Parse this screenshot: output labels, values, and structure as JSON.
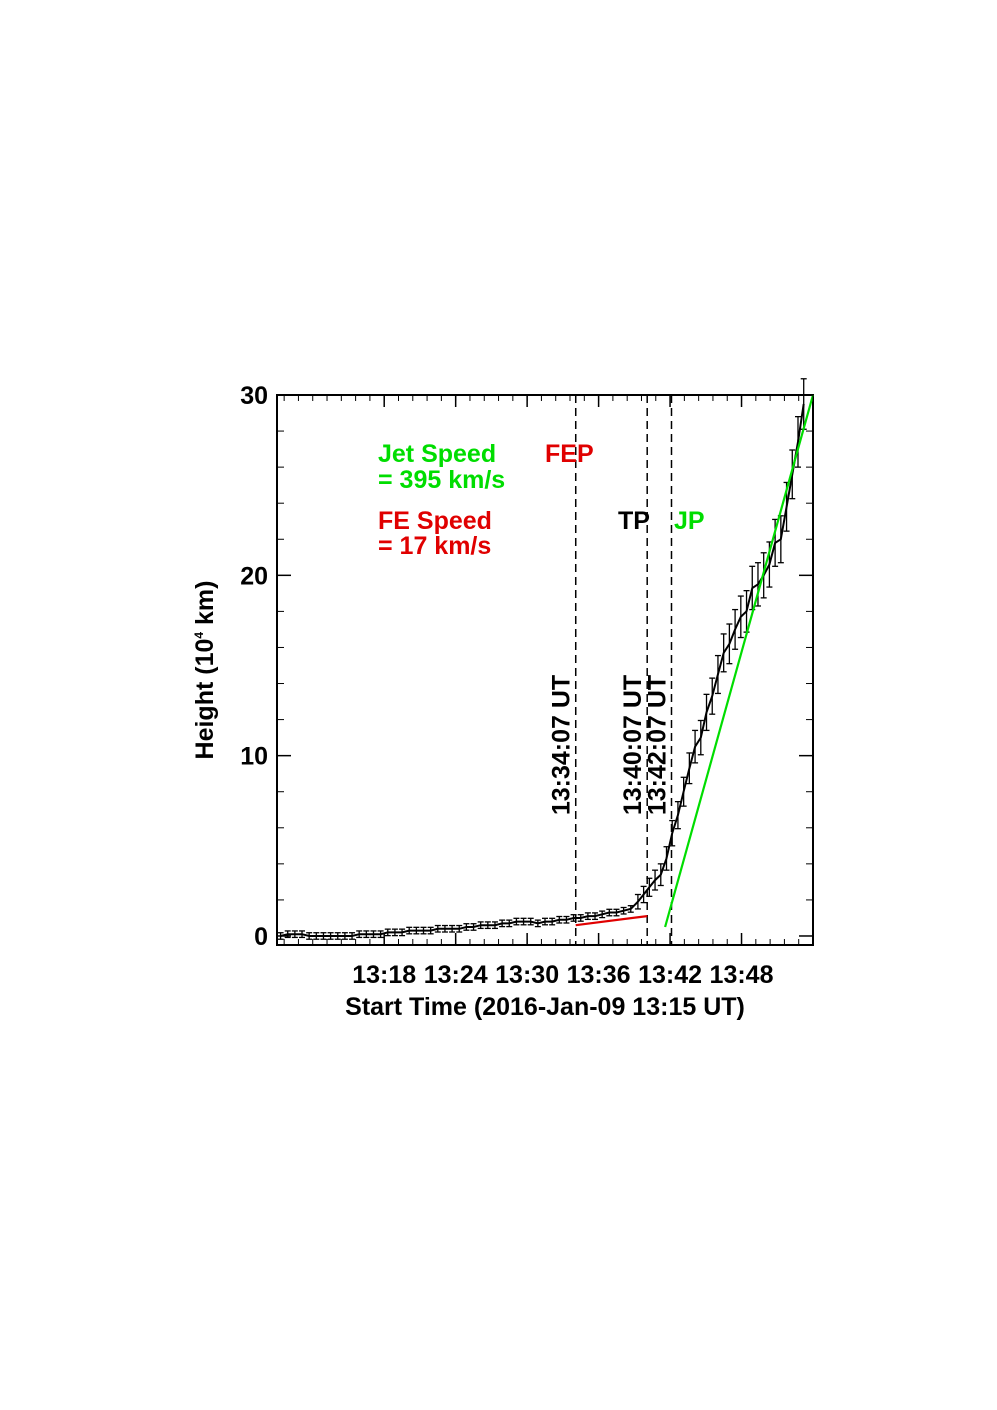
{
  "chart_data": {
    "type": "line",
    "x_unit": "minutes after 13:15 UT",
    "xlabel": "Start Time (2016-Jan-09 13:15 UT)",
    "ylabel_main": "Height (10",
    "ylabel_exp": "4",
    "ylabel_tail": " km)",
    "xlim": [
      13.15,
      13.9
    ],
    "x_ticks": [
      {
        "v": 13.3,
        "label": "13:18"
      },
      {
        "v": 13.4,
        "label": "13:24"
      },
      {
        "v": 13.5,
        "label": "13:30"
      },
      {
        "v": 13.6,
        "label": "13:36"
      },
      {
        "v": 13.7,
        "label": "13:42"
      },
      {
        "v": 13.8,
        "label": "13:48"
      }
    ],
    "ylim": [
      -0.5,
      30
    ],
    "y_ticks": [
      {
        "v": 0,
        "label": "0"
      },
      {
        "v": 10,
        "label": "10"
      },
      {
        "v": 20,
        "label": "20"
      },
      {
        "v": 30,
        "label": "30"
      }
    ],
    "series": [
      {
        "color": "#000000",
        "x": [
          13.155,
          13.165,
          13.175,
          13.185,
          13.195,
          13.205,
          13.215,
          13.225,
          13.235,
          13.245,
          13.255,
          13.265,
          13.275,
          13.285,
          13.295,
          13.305,
          13.315,
          13.325,
          13.335,
          13.345,
          13.355,
          13.365,
          13.375,
          13.385,
          13.395,
          13.405,
          13.415,
          13.425,
          13.435,
          13.445,
          13.455,
          13.465,
          13.475,
          13.485,
          13.495,
          13.505,
          13.515,
          13.525,
          13.535,
          13.545,
          13.555,
          13.565,
          13.575,
          13.585,
          13.595,
          13.605,
          13.615,
          13.625,
          13.635,
          13.645,
          13.655,
          13.663,
          13.671,
          13.679,
          13.687,
          13.695,
          13.703,
          13.711,
          13.719,
          13.727,
          13.735,
          13.743,
          13.751,
          13.759,
          13.767,
          13.775,
          13.783,
          13.791,
          13.799,
          13.807,
          13.815,
          13.823,
          13.831,
          13.839,
          13.847,
          13.855,
          13.863,
          13.871,
          13.879,
          13.887
        ],
        "y": [
          0.0,
          0.1,
          0.1,
          0.1,
          0.0,
          0.0,
          0.0,
          0.0,
          0.0,
          0.0,
          0.0,
          0.1,
          0.1,
          0.1,
          0.1,
          0.2,
          0.2,
          0.2,
          0.3,
          0.3,
          0.3,
          0.3,
          0.4,
          0.4,
          0.4,
          0.4,
          0.5,
          0.5,
          0.6,
          0.6,
          0.6,
          0.7,
          0.7,
          0.8,
          0.8,
          0.8,
          0.7,
          0.8,
          0.8,
          0.9,
          0.9,
          1.0,
          1.0,
          1.1,
          1.1,
          1.2,
          1.3,
          1.3,
          1.4,
          1.5,
          1.9,
          2.3,
          2.7,
          3.1,
          3.4,
          4.3,
          5.7,
          6.7,
          8.0,
          9.3,
          10.5,
          11.0,
          12.4,
          13.3,
          14.5,
          15.7,
          16.2,
          17.0,
          17.7,
          18.0,
          19.3,
          19.5,
          20.0,
          20.6,
          21.8,
          22.0,
          23.8,
          25.6,
          27.4,
          29.5
        ],
        "error": [
          0.18,
          0.18,
          0.18,
          0.18,
          0.18,
          0.18,
          0.18,
          0.18,
          0.18,
          0.18,
          0.18,
          0.18,
          0.18,
          0.18,
          0.18,
          0.18,
          0.18,
          0.18,
          0.18,
          0.18,
          0.18,
          0.18,
          0.18,
          0.18,
          0.18,
          0.18,
          0.18,
          0.18,
          0.18,
          0.18,
          0.18,
          0.18,
          0.18,
          0.18,
          0.18,
          0.18,
          0.18,
          0.18,
          0.18,
          0.18,
          0.18,
          0.18,
          0.18,
          0.18,
          0.18,
          0.18,
          0.18,
          0.18,
          0.18,
          0.18,
          0.4,
          0.45,
          0.5,
          0.55,
          0.6,
          0.65,
          0.7,
          0.75,
          0.8,
          0.85,
          0.9,
          0.95,
          1.0,
          1.0,
          1.05,
          1.05,
          1.1,
          1.1,
          1.15,
          1.15,
          1.2,
          1.2,
          1.25,
          1.25,
          1.3,
          1.3,
          1.35,
          1.35,
          1.4,
          1.4
        ]
      },
      {
        "color": "#e00000",
        "x": [
          13.568,
          13.668
        ],
        "y": [
          0.6,
          1.1
        ]
      },
      {
        "color": "#00dd00",
        "x": [
          13.693,
          13.9
        ],
        "y": [
          0.5,
          30.0
        ]
      }
    ],
    "vlines": [
      {
        "x": 13.568,
        "label": "13:34:07 UT"
      },
      {
        "x": 13.668,
        "label": "13:40:07 UT"
      },
      {
        "x": 13.702,
        "label": "13:42:07 UT"
      }
    ],
    "annotations": [
      {
        "text": "Jet Speed",
        "color": "#00dd00"
      },
      {
        "text": "= 395 km/s",
        "color": "#00dd00"
      },
      {
        "text": "FEP",
        "color": "#e00000"
      },
      {
        "text": "FE Speed",
        "color": "#e00000"
      },
      {
        "text": "= 17 km/s",
        "color": "#e00000"
      },
      {
        "text": "TP",
        "color": "#000000"
      },
      {
        "text": "JP",
        "color": "#00dd00"
      }
    ]
  }
}
